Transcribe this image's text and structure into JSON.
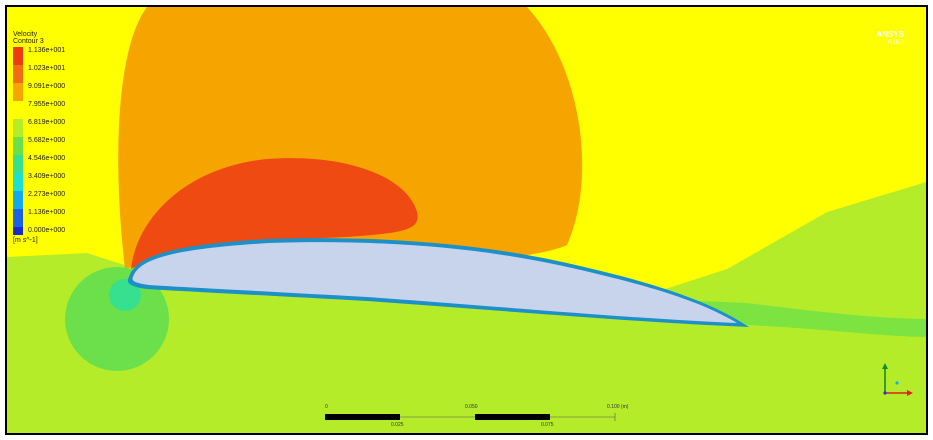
{
  "legend": {
    "title_line1": "Velocity",
    "title_line2": "Contour 3",
    "levels": [
      {
        "label": "1.136e+001",
        "color": "#ee3a10"
      },
      {
        "label": "1.023e+001",
        "color": "#f26a12"
      },
      {
        "label": "9.091e+000",
        "color": "#f5a400"
      },
      {
        "label": "7.955e+000",
        "color": "#ffff00"
      },
      {
        "label": "6.819e+000",
        "color": "#b5ec2a"
      },
      {
        "label": "5.682e+000",
        "color": "#6be04a"
      },
      {
        "label": "4.546e+000",
        "color": "#36e08e"
      },
      {
        "label": "3.409e+000",
        "color": "#1ee0d0"
      },
      {
        "label": "2.273e+000",
        "color": "#14a8ee"
      },
      {
        "label": "1.136e+000",
        "color": "#1c62e4"
      },
      {
        "label": "0.000e+000",
        "color": "#1a2ad0"
      }
    ],
    "unit": "[m s^-1]"
  },
  "logo": {
    "name": "ANSYS",
    "sub": "R15.0"
  },
  "scale_bar": {
    "top_labels": [
      "0",
      "0.050",
      "0.100 (m)"
    ],
    "bottom_labels": [
      "0.025",
      "0.075"
    ]
  },
  "colors": {
    "background_field": "#ffff00",
    "outer_high": "#f5a400",
    "inner_high": "#ee4a12",
    "wake_green": "#b5ec2a",
    "airfoil_fill": "#c8d4ec",
    "airfoil_edge": "#1e90c8"
  }
}
